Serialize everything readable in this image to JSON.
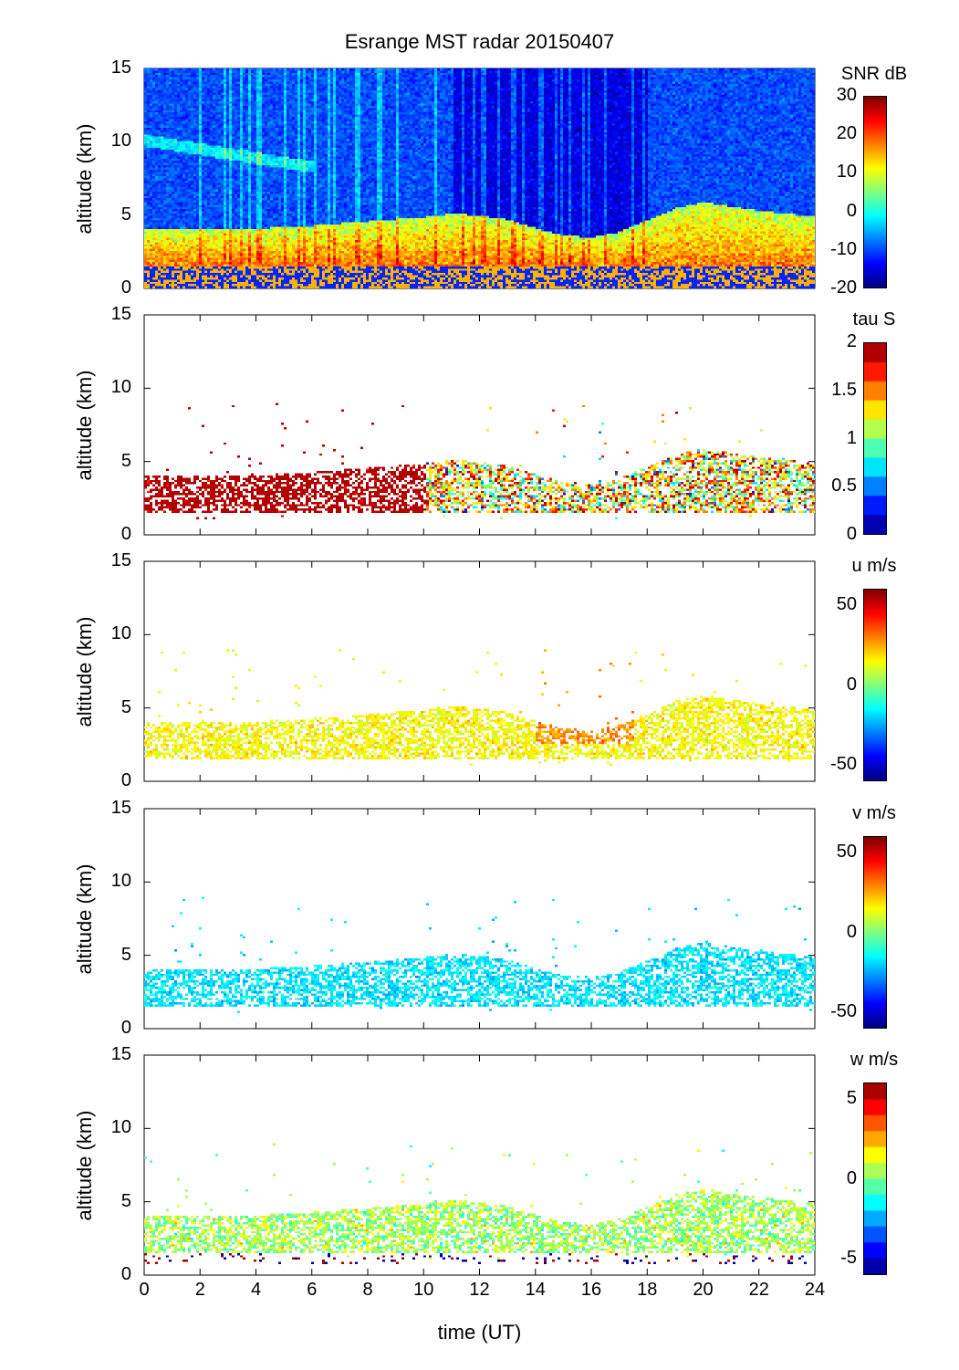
{
  "chart_data": [
    {
      "type": "heatmap",
      "name": "snr",
      "colorbar_label": "SNR dB",
      "clim": [
        -20,
        30
      ],
      "colorbar_ticks": [
        "30",
        "20",
        "10",
        "0",
        "-10",
        "-20"
      ],
      "colorbar_levels": "continuous"
    },
    {
      "type": "heatmap",
      "name": "tau",
      "colorbar_label": "tau S",
      "clim": [
        0,
        2
      ],
      "colorbar_ticks": [
        "2",
        "1.5",
        "1",
        "0.5",
        "0"
      ],
      "colorbar_levels": 10
    },
    {
      "type": "heatmap",
      "name": "u",
      "colorbar_label": "u m/s",
      "clim": [
        -60,
        60
      ],
      "colorbar_ticks": [
        "50",
        "0",
        "-50"
      ],
      "colorbar_levels": "continuous"
    },
    {
      "type": "heatmap",
      "name": "v",
      "colorbar_label": "v m/s",
      "clim": [
        -60,
        60
      ],
      "colorbar_ticks": [
        "50",
        "0",
        "-50"
      ],
      "colorbar_levels": "continuous"
    },
    {
      "type": "heatmap",
      "name": "w",
      "colorbar_label": "w m/s",
      "clim": [
        -6,
        6
      ],
      "colorbar_ticks": [
        "5",
        "0",
        "-5"
      ],
      "colorbar_levels": 12
    }
  ],
  "shared": {
    "title": "Esrange MST radar 20150407",
    "xlabel": "time (UT)",
    "ylabel": "altitude (km)",
    "xlim": [
      0,
      24
    ],
    "ylim": [
      0,
      15
    ],
    "x_ticks": [
      "0",
      "2",
      "4",
      "6",
      "8",
      "10",
      "12",
      "14",
      "16",
      "18",
      "20",
      "22",
      "24"
    ],
    "y_ticks": [
      "15",
      "10",
      "5",
      "0"
    ],
    "echo_layer": {
      "time_h": [
        0,
        2,
        4,
        6,
        8,
        10,
        11,
        12,
        13,
        14,
        15,
        16,
        17,
        18,
        19,
        20,
        21,
        22,
        23,
        24
      ],
      "bottom_km": [
        1.5,
        1.5,
        1.5,
        1.5,
        1.5,
        1.5,
        1.5,
        1.5,
        1.5,
        1.5,
        1.5,
        1.5,
        1.5,
        1.5,
        1.5,
        1.5,
        1.5,
        1.5,
        1.5,
        1.5
      ],
      "top_km": [
        4,
        4,
        4,
        4.2,
        4.5,
        4.8,
        5,
        4.9,
        4.6,
        4,
        3.5,
        3.4,
        3.8,
        4.6,
        5.4,
        5.8,
        5.5,
        5.2,
        5,
        4.8
      ]
    },
    "field_means": {
      "tau": 1.9,
      "u": 15,
      "v": -15,
      "w": 0.5
    }
  }
}
